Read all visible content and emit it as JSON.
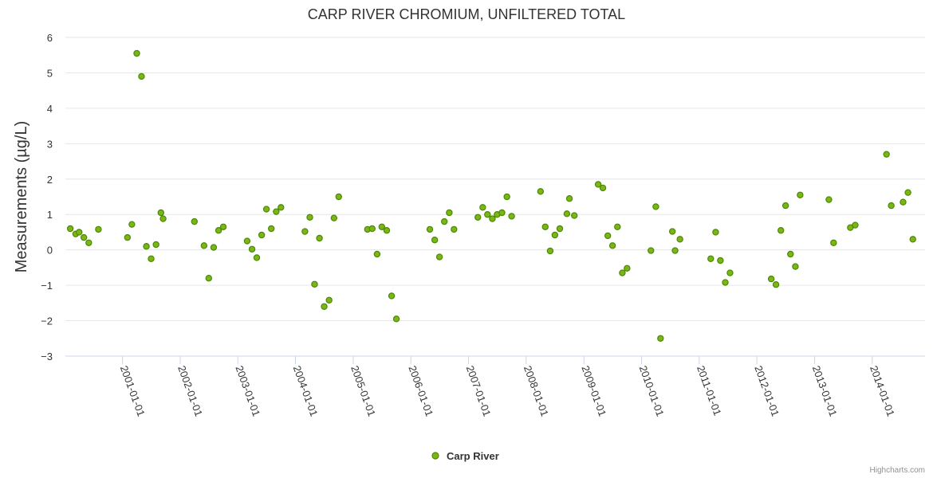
{
  "chart_data": {
    "type": "scatter",
    "title": "CARP RIVER CHROMIUM, UNFILTERED TOTAL",
    "xlabel": "",
    "ylabel": "Measurements (µg/L)",
    "ylim": [
      -3,
      6
    ],
    "yticks": [
      "6",
      "5",
      "4",
      "3",
      "2",
      "1",
      "0",
      "−1",
      "−2",
      "−3"
    ],
    "xlim": [
      "2000-01-05",
      "2014-12-01"
    ],
    "xticks": [
      "2001-01-01",
      "2002-01-01",
      "2003-01-01",
      "2004-01-01",
      "2005-01-01",
      "2006-01-01",
      "2007-01-01",
      "2008-01-01",
      "2009-01-01",
      "2010-01-01",
      "2011-01-01",
      "2012-01-01",
      "2013-01-01",
      "2014-01-01"
    ],
    "grid": true,
    "legend_position": "bottom-center",
    "series": [
      {
        "name": "Carp River",
        "color": "#7cb518",
        "stroke": "#4a8a00",
        "points": [
          [
            "2000-02-05",
            0.6
          ],
          [
            "2000-03-10",
            0.45
          ],
          [
            "2000-04-01",
            0.5
          ],
          [
            "2000-05-01",
            0.35
          ],
          [
            "2000-06-01",
            0.2
          ],
          [
            "2000-08-01",
            0.58
          ],
          [
            "2001-02-01",
            0.35
          ],
          [
            "2001-03-01",
            0.72
          ],
          [
            "2001-04-01",
            5.55
          ],
          [
            "2001-05-01",
            4.9
          ],
          [
            "2001-06-01",
            0.1
          ],
          [
            "2001-07-01",
            -0.25
          ],
          [
            "2001-08-01",
            0.15
          ],
          [
            "2001-09-01",
            1.05
          ],
          [
            "2001-09-15",
            0.88
          ],
          [
            "2002-04-01",
            0.8
          ],
          [
            "2002-06-01",
            0.12
          ],
          [
            "2002-07-01",
            -0.8
          ],
          [
            "2002-08-01",
            0.07
          ],
          [
            "2002-09-01",
            0.55
          ],
          [
            "2002-10-01",
            0.65
          ],
          [
            "2003-03-01",
            0.25
          ],
          [
            "2003-04-01",
            0.02
          ],
          [
            "2003-05-01",
            -0.22
          ],
          [
            "2003-06-01",
            0.42
          ],
          [
            "2003-07-01",
            1.15
          ],
          [
            "2003-08-01",
            0.6
          ],
          [
            "2003-09-01",
            1.08
          ],
          [
            "2003-10-01",
            1.2
          ],
          [
            "2004-03-01",
            0.52
          ],
          [
            "2004-04-01",
            0.92
          ],
          [
            "2004-05-01",
            -0.97
          ],
          [
            "2004-06-01",
            0.33
          ],
          [
            "2004-07-01",
            -1.6
          ],
          [
            "2004-08-01",
            -1.42
          ],
          [
            "2004-09-01",
            0.9
          ],
          [
            "2004-10-01",
            1.5
          ],
          [
            "2005-04-01",
            0.58
          ],
          [
            "2005-05-01",
            0.6
          ],
          [
            "2005-06-01",
            -0.12
          ],
          [
            "2005-07-01",
            0.65
          ],
          [
            "2005-08-01",
            0.55
          ],
          [
            "2005-09-01",
            -1.3
          ],
          [
            "2005-10-01",
            -1.95
          ],
          [
            "2006-05-01",
            0.58
          ],
          [
            "2006-06-01",
            0.28
          ],
          [
            "2006-07-01",
            -0.2
          ],
          [
            "2006-08-01",
            0.8
          ],
          [
            "2006-09-01",
            1.05
          ],
          [
            "2006-10-01",
            0.58
          ],
          [
            "2007-03-01",
            0.92
          ],
          [
            "2007-04-01",
            1.2
          ],
          [
            "2007-05-01",
            1.0
          ],
          [
            "2007-06-01",
            0.88
          ],
          [
            "2007-07-01",
            1.0
          ],
          [
            "2007-08-01",
            1.05
          ],
          [
            "2007-09-01",
            1.5
          ],
          [
            "2007-10-01",
            0.95
          ],
          [
            "2008-04-01",
            1.65
          ],
          [
            "2008-05-01",
            0.65
          ],
          [
            "2008-06-01",
            -0.03
          ],
          [
            "2008-07-01",
            0.42
          ],
          [
            "2008-08-01",
            0.6
          ],
          [
            "2008-09-15",
            1.02
          ],
          [
            "2008-10-01",
            1.45
          ],
          [
            "2008-11-01",
            0.97
          ],
          [
            "2009-04-01",
            1.85
          ],
          [
            "2009-05-01",
            1.75
          ],
          [
            "2009-06-01",
            0.4
          ],
          [
            "2009-07-01",
            0.12
          ],
          [
            "2009-08-01",
            0.65
          ],
          [
            "2009-09-01",
            -0.65
          ],
          [
            "2009-10-01",
            -0.52
          ],
          [
            "2010-03-01",
            -0.02
          ],
          [
            "2010-04-01",
            1.22
          ],
          [
            "2010-05-01",
            -2.5
          ],
          [
            "2010-07-15",
            0.52
          ],
          [
            "2010-08-01",
            -0.02
          ],
          [
            "2010-09-01",
            0.3
          ],
          [
            "2011-03-15",
            -0.25
          ],
          [
            "2011-04-15",
            0.5
          ],
          [
            "2011-05-15",
            -0.3
          ],
          [
            "2011-06-15",
            -0.92
          ],
          [
            "2011-07-15",
            -0.65
          ],
          [
            "2012-04-01",
            -0.82
          ],
          [
            "2012-05-01",
            -0.98
          ],
          [
            "2012-06-01",
            0.55
          ],
          [
            "2012-07-01",
            1.25
          ],
          [
            "2012-08-01",
            -0.12
          ],
          [
            "2012-09-01",
            -0.47
          ],
          [
            "2012-10-01",
            1.55
          ],
          [
            "2013-04-01",
            1.42
          ],
          [
            "2013-05-01",
            0.2
          ],
          [
            "2013-08-15",
            0.63
          ],
          [
            "2013-09-15",
            0.7
          ],
          [
            "2014-04-01",
            2.7
          ],
          [
            "2014-05-01",
            1.25
          ],
          [
            "2014-07-15",
            1.35
          ],
          [
            "2014-08-15",
            1.62
          ],
          [
            "2014-09-15",
            0.3
          ]
        ]
      }
    ],
    "credits": "Highcharts.com"
  }
}
